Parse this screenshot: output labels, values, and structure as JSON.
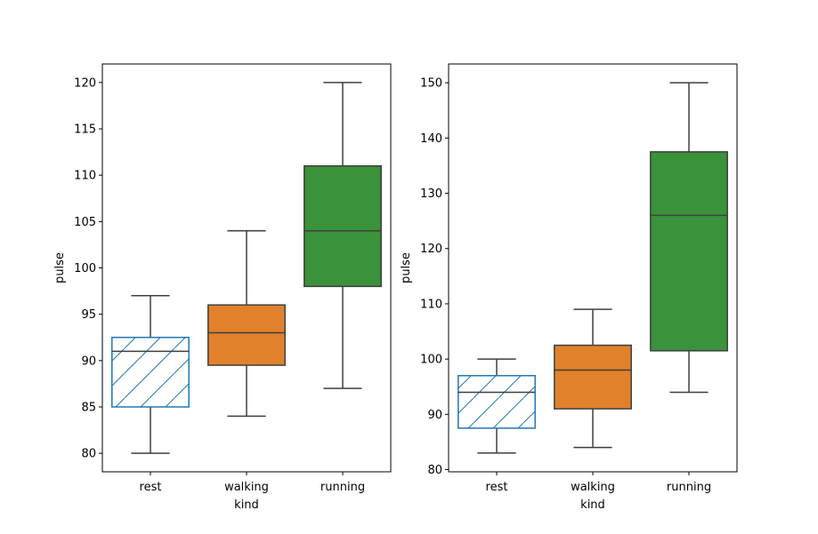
{
  "chart_data": [
    {
      "type": "box",
      "xlabel": "kind",
      "ylabel": "pulse",
      "categories": [
        "rest",
        "walking",
        "running"
      ],
      "ylim": [
        78,
        122
      ],
      "yticks": [
        80,
        85,
        90,
        95,
        100,
        105,
        110,
        115,
        120
      ],
      "grid": false,
      "boxes": [
        {
          "category": "rest",
          "whisker_low": 80,
          "q1": 85,
          "median": 91,
          "q3": 92.5,
          "whisker_high": 97,
          "color": "#1f77b4",
          "filled": false,
          "hatch": "/"
        },
        {
          "category": "walking",
          "whisker_low": 84,
          "q1": 89.5,
          "median": 93,
          "q3": 96,
          "whisker_high": 104,
          "color": "#e1812c",
          "filled": true,
          "hatch": ""
        },
        {
          "category": "running",
          "whisker_low": 87,
          "q1": 98,
          "median": 104,
          "q3": 111,
          "whisker_high": 120,
          "color": "#3a923a",
          "filled": true,
          "hatch": ""
        }
      ]
    },
    {
      "type": "box",
      "xlabel": "kind",
      "ylabel": "pulse",
      "categories": [
        "rest",
        "walking",
        "running"
      ],
      "ylim": [
        79.6,
        153.4
      ],
      "yticks": [
        80,
        90,
        100,
        110,
        120,
        130,
        140,
        150
      ],
      "grid": false,
      "boxes": [
        {
          "category": "rest",
          "whisker_low": 83,
          "q1": 87.5,
          "median": 94,
          "q3": 97,
          "whisker_high": 100,
          "color": "#1f77b4",
          "filled": false,
          "hatch": "/"
        },
        {
          "category": "walking",
          "whisker_low": 84,
          "q1": 91,
          "median": 98,
          "q3": 102.5,
          "whisker_high": 109,
          "color": "#e1812c",
          "filled": true,
          "hatch": ""
        },
        {
          "category": "running",
          "whisker_low": 94,
          "q1": 101.5,
          "median": 126,
          "q3": 137.5,
          "whisker_high": 150,
          "color": "#3a923a",
          "filled": true,
          "hatch": ""
        }
      ]
    }
  ]
}
